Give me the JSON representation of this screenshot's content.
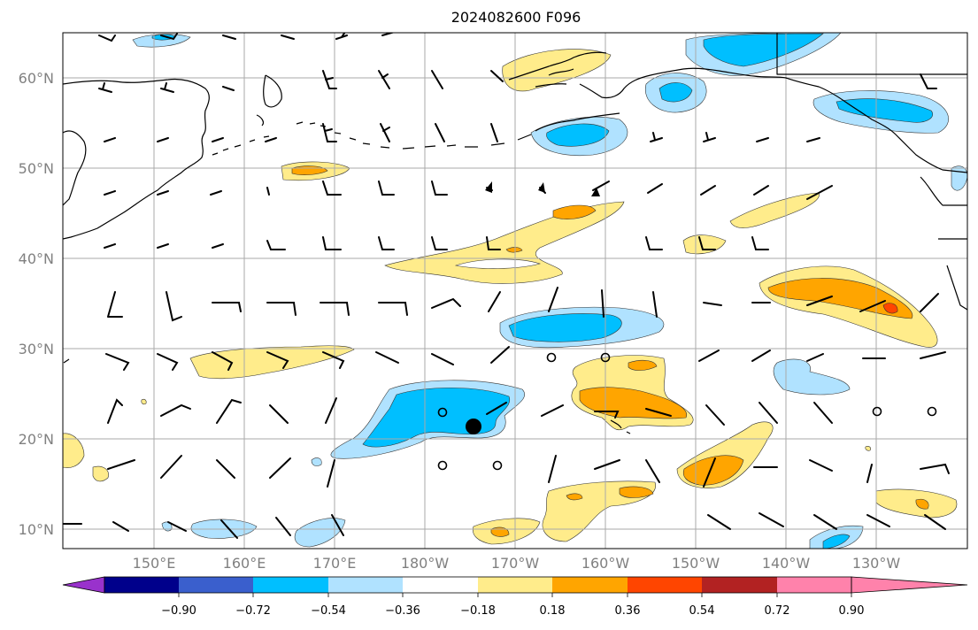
{
  "title": "2024082600 F096",
  "lat_labels": [
    "60°N",
    "50°N",
    "40°N",
    "30°N",
    "20°N",
    "10°N"
  ],
  "lon_labels": [
    "150°E",
    "160°E",
    "170°E",
    "180°W",
    "170°W",
    "160°W",
    "150°W",
    "140°W",
    "130°W"
  ],
  "colorbar": {
    "ticks": [
      "−0.90",
      "−0.72",
      "−0.54",
      "−0.36",
      "−0.18",
      "0.18",
      "0.36",
      "0.54",
      "0.72",
      "0.90"
    ],
    "colors": [
      "#9932CC",
      "#00008B",
      "#3A5FCD",
      "#00BFFF",
      "#B0E2FF",
      "#FFFFFF",
      "#FFEC8B",
      "#FFA500",
      "#FF4500",
      "#B22222",
      "#FF82AB"
    ]
  },
  "markers": {
    "storm_center": "large-black-dot"
  }
}
